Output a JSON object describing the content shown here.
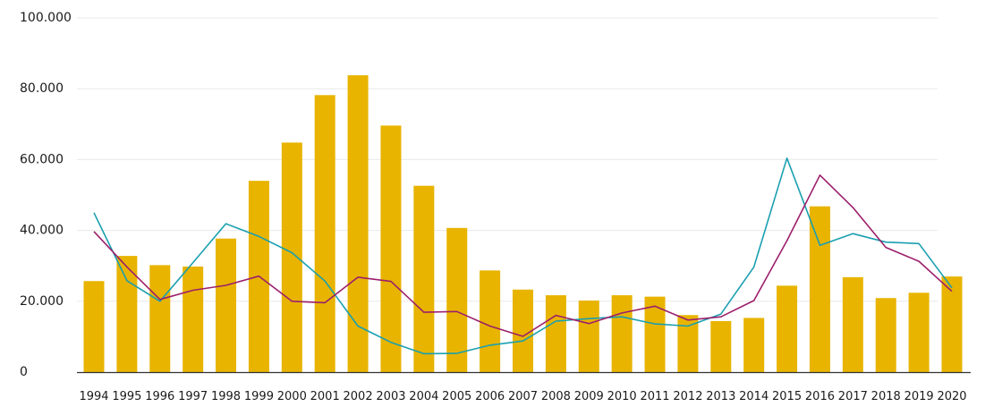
{
  "chart_data": {
    "type": "bar",
    "title": "",
    "xlabel": "",
    "ylabel": "",
    "ylim": [
      0,
      100000
    ],
    "y_ticks": [
      0,
      20000,
      40000,
      60000,
      80000,
      100000
    ],
    "y_tick_labels": [
      "0",
      "20.000",
      "40.000",
      "60.000",
      "80.000",
      "100.000"
    ],
    "grid": "horizontal",
    "legend": "none",
    "categories": [
      "1994",
      "1995",
      "1996",
      "1997",
      "1998",
      "1999",
      "2000",
      "2001",
      "2002",
      "2003",
      "2004",
      "2005",
      "2006",
      "2007",
      "2008",
      "2009",
      "2010",
      "2011",
      "2012",
      "2013",
      "2014",
      "2015",
      "2016",
      "2017",
      "2018",
      "2019",
      "2020"
    ],
    "series": [
      {
        "type": "bar",
        "color": "#e8b400",
        "values": [
          25700,
          32800,
          30200,
          29800,
          37700,
          54000,
          64800,
          78200,
          83800,
          69600,
          52600,
          40700,
          28700,
          23300,
          21700,
          20200,
          21700,
          21300,
          16100,
          14400,
          15300,
          24400,
          46800,
          26800,
          20900,
          22400,
          27000
        ]
      },
      {
        "type": "line",
        "color": "#1a9fb0",
        "values": [
          45000,
          25800,
          20000,
          30900,
          41900,
          38300,
          33700,
          25700,
          13000,
          8400,
          5200,
          5300,
          7600,
          8800,
          14400,
          15100,
          15600,
          13600,
          13000,
          16400,
          29700,
          60400,
          35800,
          39100,
          36700,
          36300,
          23800
        ]
      },
      {
        "type": "line",
        "color": "#9c1f6b",
        "values": [
          39700,
          29700,
          20500,
          23100,
          24500,
          27100,
          20000,
          19600,
          26800,
          25600,
          16900,
          17100,
          13000,
          10100,
          16000,
          13700,
          16700,
          18600,
          14700,
          15600,
          20200,
          37100,
          55600,
          46500,
          35200,
          31300,
          22800
        ]
      }
    ]
  }
}
